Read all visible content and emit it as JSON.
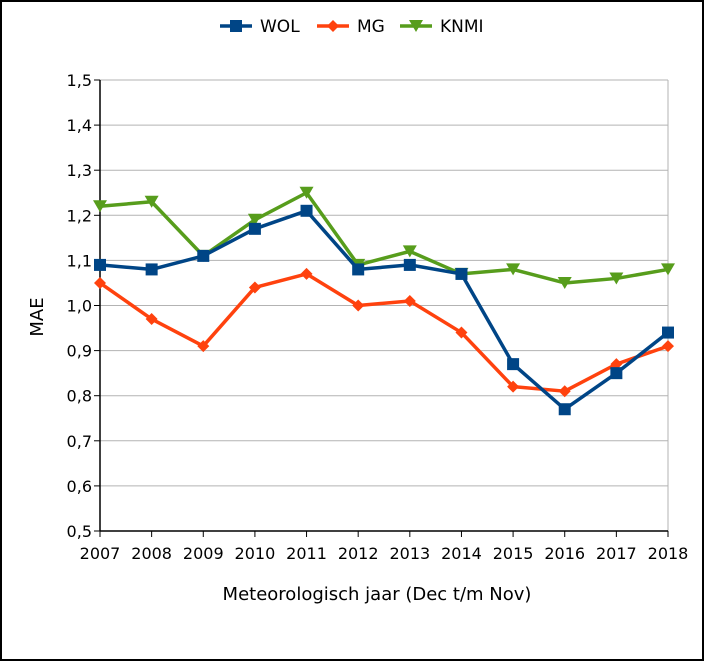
{
  "chart_data": {
    "type": "line",
    "title": "",
    "xlabel": "Meteorologisch jaar (Dec t/m Nov)",
    "ylabel": "MAE",
    "categories": [
      "2007",
      "2008",
      "2009",
      "2010",
      "2011",
      "2012",
      "2013",
      "2014",
      "2015",
      "2016",
      "2017",
      "2018"
    ],
    "ylim": [
      0.5,
      1.5
    ],
    "yticks": [
      "0,5",
      "0,6",
      "0,7",
      "0,8",
      "0,9",
      "1,0",
      "1,1",
      "1,2",
      "1,3",
      "1,4",
      "1,5"
    ],
    "grid": "horizontal",
    "legend_position": "top-center",
    "series": [
      {
        "name": "WOL",
        "color": "#004586",
        "marker": "square",
        "values": [
          1.09,
          1.08,
          1.11,
          1.17,
          1.21,
          1.08,
          1.09,
          1.07,
          0.87,
          0.77,
          0.85,
          0.94
        ]
      },
      {
        "name": "MG",
        "color": "#ff420e",
        "marker": "diamond",
        "values": [
          1.05,
          0.97,
          0.91,
          1.04,
          1.07,
          1.0,
          1.01,
          0.94,
          0.82,
          0.81,
          0.87,
          0.91
        ]
      },
      {
        "name": "KNMI",
        "color": "#579d1c",
        "marker": "triangle-down",
        "values": [
          1.22,
          1.23,
          1.11,
          1.19,
          1.25,
          1.09,
          1.12,
          1.07,
          1.08,
          1.05,
          1.06,
          1.08
        ]
      }
    ]
  }
}
